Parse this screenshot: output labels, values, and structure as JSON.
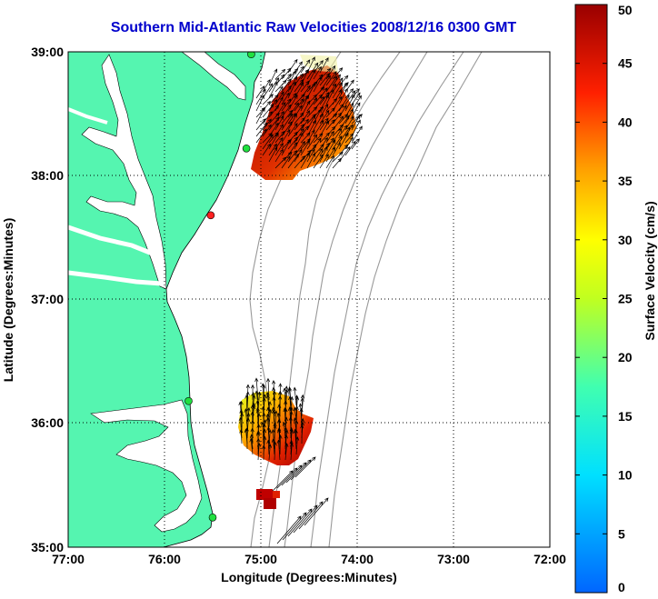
{
  "title": "Southern Mid-Atlantic Raw Velocities 2008/12/16 0300 GMT",
  "axes": {
    "xlabel": "Longitude (Degrees:Minutes)",
    "ylabel": "Latitude (Degrees:Minutes)",
    "x_ticks": [
      "77:00",
      "76:00",
      "75:00",
      "74:00",
      "73:00",
      "72:00"
    ],
    "y_ticks": [
      "39:00",
      "38:00",
      "37:00",
      "36:00",
      "35:00"
    ]
  },
  "colorbar": {
    "label": "Surface Velocity (cm/s)",
    "min": 0,
    "max": 50,
    "ticks": [
      "50",
      "45",
      "40",
      "35",
      "30",
      "25",
      "20",
      "15",
      "10",
      "5",
      "0"
    ]
  },
  "colors": {
    "land": "#55f5b0",
    "title": "#0000cc",
    "grid": "#000000",
    "bathymetry": "#999999"
  },
  "chart_data": {
    "type": "map",
    "lon_range": [
      -77,
      -72
    ],
    "lat_range": [
      35,
      39
    ],
    "grid": true,
    "stations": [
      {
        "lon": -75.1,
        "lat": 38.98,
        "color": "green"
      },
      {
        "lon": -75.15,
        "lat": 38.22,
        "color": "green"
      },
      {
        "lon": -75.52,
        "lat": 37.68,
        "color": "red"
      },
      {
        "lon": -75.75,
        "lat": 36.18,
        "color": "green"
      },
      {
        "lon": -75.5,
        "lat": 35.24,
        "color": "green"
      }
    ]
  }
}
